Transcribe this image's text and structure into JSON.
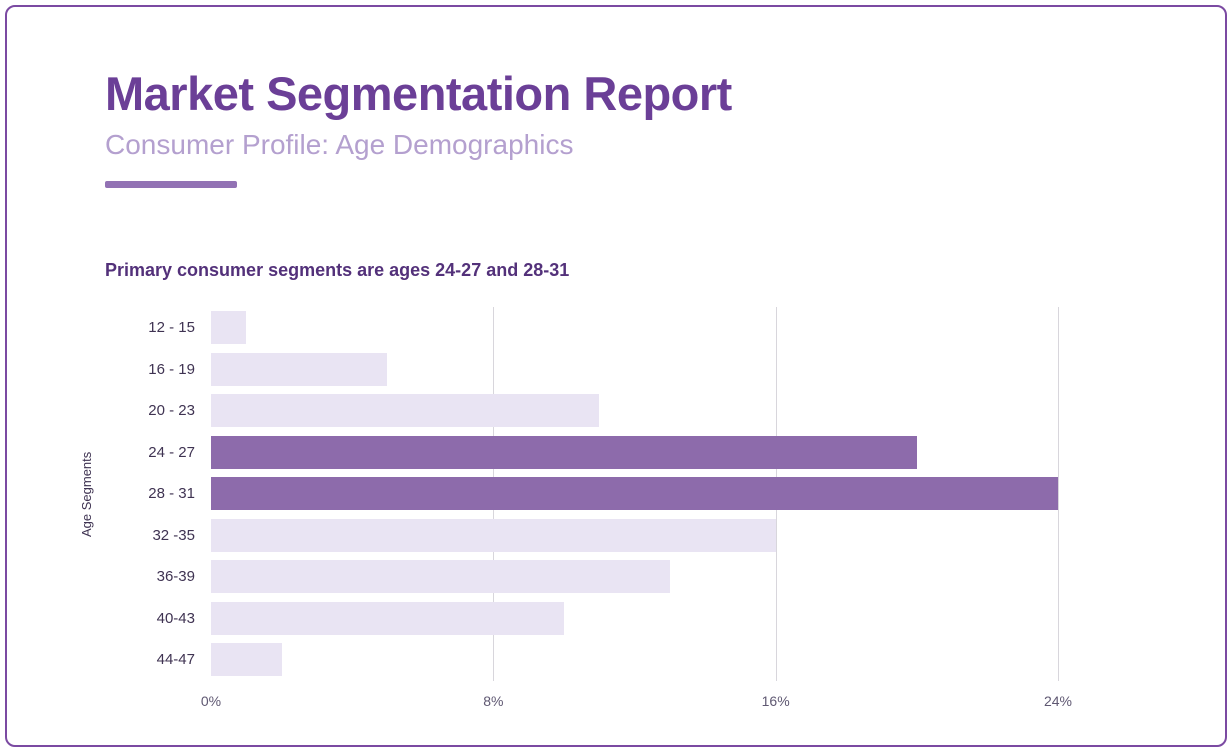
{
  "page": {
    "title": "Market Segmentation Report",
    "subtitle": "Consumer Profile: Age Demographics"
  },
  "colors": {
    "border": "#7b4aa2",
    "title": "#6b3f97",
    "subtitle": "#b4a0cf",
    "accent_rule": "#9272b4",
    "heading": "#53317a",
    "bar": "#e9e4f3",
    "bar_highlight": "#8d6bab",
    "gridline": "#d8d6dc"
  },
  "chart_data": {
    "type": "bar",
    "orientation": "horizontal",
    "title": "Primary consumer segments are ages 24-27 and 28-31",
    "ylabel": "Age Segments",
    "xlabel": "",
    "categories": [
      "12 - 15",
      "16 - 19",
      "20 - 23",
      "24 - 27",
      "28 - 31",
      "32 -35",
      "36-39",
      "40-43",
      "44-47"
    ],
    "values": [
      1,
      5,
      11,
      20,
      24,
      16,
      13,
      10,
      2
    ],
    "value_unit": "%",
    "highlighted_indices": [
      3,
      4
    ],
    "xlim": [
      0,
      24
    ],
    "xticks": [
      {
        "label": "0%",
        "value": 0
      },
      {
        "label": "8%",
        "value": 8
      },
      {
        "label": "16%",
        "value": 16
      },
      {
        "label": "24%",
        "value": 24
      }
    ],
    "grid": "vertical",
    "legend": "none"
  }
}
